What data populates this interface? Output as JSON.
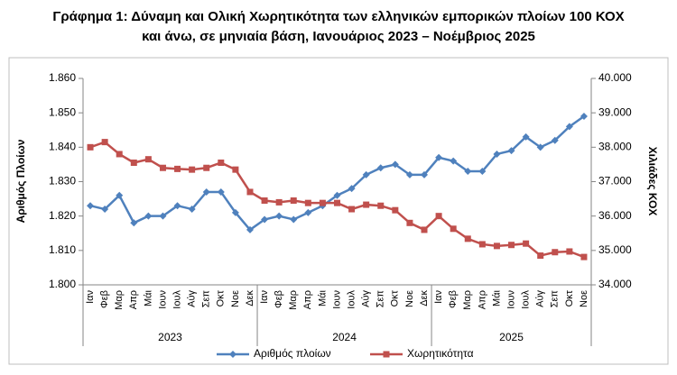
{
  "chart_data": {
    "type": "line",
    "title": [
      "Γράφημα 1: Δύναμη και Ολική Χωρητικότητα των ελληνικών εμπορικών πλοίων 100 ΚΟΧ",
      "και άνω, σε μηνιαία βάση, Ιανουάριος 2023 – Νοέμβριος 2025"
    ],
    "y_label": "Αριθμός Πλοίων",
    "y2_label": "Χιλιάδες ΚΟΧ",
    "categories": [
      "Ιαν",
      "Φεβ",
      "Μαρ",
      "Απρ",
      "Μάι",
      "Ιουν",
      "Ιουλ",
      "Αύγ",
      "Σεπ",
      "Οκτ",
      "Νοε",
      "Δεκ",
      "Ιαν",
      "Φεβ",
      "Μαρ",
      "Απρ",
      "Μάι",
      "Ιουν",
      "Ιουλ",
      "Αύγ",
      "Σεπ",
      "Οκτ",
      "Νοε",
      "Δεκ",
      "Ιαν",
      "Φεβ",
      "Μαρ",
      "Απρ",
      "Μάι",
      "Ιουν",
      "Ιουλ",
      "Αύγ",
      "Σεπ",
      "Οκτ",
      "Νοε"
    ],
    "year_groups": [
      {
        "label": "2023",
        "count": 12
      },
      {
        "label": "2024",
        "count": 12
      },
      {
        "label": "2025",
        "count": 11
      }
    ],
    "series": [
      {
        "name": "Αριθμός πλοίων",
        "color": "#4f81bd",
        "marker": "diamond",
        "axis": "y",
        "values": [
          1823,
          1822,
          1826,
          1818,
          1820,
          1820,
          1823,
          1822,
          1827,
          1827,
          1821,
          1816,
          1819,
          1820,
          1819,
          1821,
          1823,
          1826,
          1828,
          1832,
          1834,
          1835,
          1832,
          1832,
          1837,
          1836,
          1833,
          1833,
          1838,
          1839,
          1843,
          1840,
          1842,
          1846,
          1849
        ]
      },
      {
        "name": "Χωρητικότητα",
        "color": "#c0504d",
        "marker": "square",
        "axis": "y2",
        "values": [
          38000,
          38150,
          37800,
          37550,
          37650,
          37400,
          37370,
          37350,
          37400,
          37550,
          37350,
          36700,
          36450,
          36400,
          36450,
          36380,
          36380,
          36380,
          36200,
          36330,
          36300,
          36170,
          35800,
          35600,
          36000,
          35630,
          35340,
          35180,
          35130,
          35160,
          35200,
          34850,
          34950,
          34970,
          34810
        ]
      }
    ],
    "ylim": [
      1800,
      1860
    ],
    "yticks": [
      {
        "value": 1800,
        "label": "1.800"
      },
      {
        "value": 1810,
        "label": "1.810"
      },
      {
        "value": 1820,
        "label": "1.820"
      },
      {
        "value": 1830,
        "label": "1.830"
      },
      {
        "value": 1840,
        "label": "1.840"
      },
      {
        "value": 1850,
        "label": "1.850"
      },
      {
        "value": 1860,
        "label": "1.860"
      }
    ],
    "y2lim": [
      34000,
      40000
    ],
    "y2ticks": [
      {
        "value": 34000,
        "label": "34.000"
      },
      {
        "value": 35000,
        "label": "35.000"
      },
      {
        "value": 36000,
        "label": "36.000"
      },
      {
        "value": 37000,
        "label": "37.000"
      },
      {
        "value": 38000,
        "label": "38.000"
      },
      {
        "value": 39000,
        "label": "39.000"
      },
      {
        "value": 40000,
        "label": "40.000"
      }
    ],
    "grid": false,
    "legend": "bottom"
  }
}
